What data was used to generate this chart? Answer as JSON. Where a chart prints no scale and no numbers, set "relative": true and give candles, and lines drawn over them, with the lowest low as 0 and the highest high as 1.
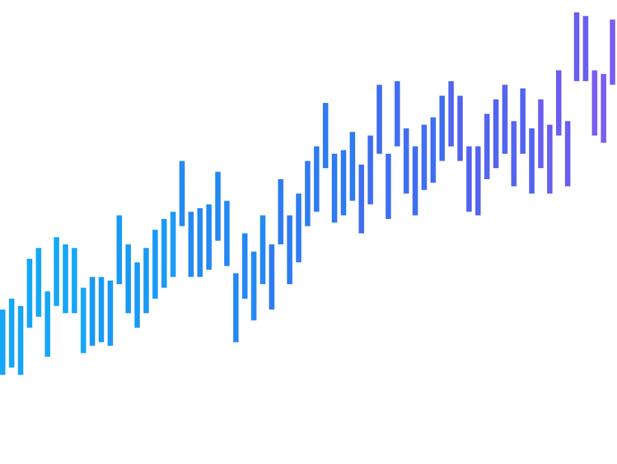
{
  "chart_data": {
    "type": "candlestick",
    "relative": true,
    "categories": [
      null,
      null,
      null,
      null,
      null,
      null,
      null,
      null,
      null,
      null,
      null,
      null,
      null,
      null,
      null,
      null,
      null,
      null,
      null,
      null,
      null,
      null,
      null,
      null,
      null,
      null,
      null,
      null,
      null,
      null,
      null,
      null,
      null,
      null,
      null,
      null,
      null,
      null,
      null,
      null,
      null,
      null,
      null,
      null,
      null,
      null,
      null,
      null,
      null,
      null,
      null,
      null,
      null,
      null,
      null,
      null,
      null,
      null,
      null,
      null,
      null,
      null,
      null,
      null,
      null,
      null,
      null,
      null,
      null
    ],
    "ohlc": [
      [
        0,
        0.18,
        0,
        0.18
      ],
      [
        0.02,
        0.21,
        0.02,
        0.21
      ],
      [
        0,
        0.19,
        0,
        0.19
      ],
      [
        0.13,
        0.32,
        0.13,
        0.32
      ],
      [
        0.16,
        0.35,
        0.16,
        0.35
      ],
      [
        0.05,
        0.23,
        0.05,
        0.23
      ],
      [
        0.19,
        0.38,
        0.19,
        0.38
      ],
      [
        0.17,
        0.36,
        0.17,
        0.36
      ],
      [
        0.17,
        0.35,
        0.17,
        0.35
      ],
      [
        0.06,
        0.24,
        0.06,
        0.24
      ],
      [
        0.08,
        0.27,
        0.08,
        0.27
      ],
      [
        0.09,
        0.27,
        0.09,
        0.27
      ],
      [
        0.08,
        0.26,
        0.08,
        0.26
      ],
      [
        0.25,
        0.44,
        0.25,
        0.44
      ],
      [
        0.17,
        0.36,
        0.17,
        0.36
      ],
      [
        0.13,
        0.31,
        0.13,
        0.31
      ],
      [
        0.17,
        0.35,
        0.17,
        0.35
      ],
      [
        0.21,
        0.4,
        0.21,
        0.4
      ],
      [
        0.24,
        0.43,
        0.24,
        0.43
      ],
      [
        0.27,
        0.45,
        0.27,
        0.45
      ],
      [
        0.41,
        0.59,
        0.41,
        0.59
      ],
      [
        0.27,
        0.45,
        0.27,
        0.45
      ],
      [
        0.27,
        0.46,
        0.27,
        0.46
      ],
      [
        0.29,
        0.47,
        0.29,
        0.47
      ],
      [
        0.37,
        0.56,
        0.37,
        0.56
      ],
      [
        0.3,
        0.48,
        0.3,
        0.48
      ],
      [
        0.09,
        0.28,
        0.09,
        0.28
      ],
      [
        0.21,
        0.39,
        0.21,
        0.39
      ],
      [
        0.15,
        0.34,
        0.15,
        0.34
      ],
      [
        0.25,
        0.44,
        0.25,
        0.44
      ],
      [
        0.18,
        0.36,
        0.18,
        0.36
      ],
      [
        0.36,
        0.54,
        0.36,
        0.54
      ],
      [
        0.25,
        0.44,
        0.25,
        0.44
      ],
      [
        0.31,
        0.5,
        0.31,
        0.5
      ],
      [
        0.41,
        0.59,
        0.41,
        0.59
      ],
      [
        0.45,
        0.63,
        0.45,
        0.63
      ],
      [
        0.57,
        0.75,
        0.57,
        0.75
      ],
      [
        0.42,
        0.61,
        0.42,
        0.61
      ],
      [
        0.44,
        0.62,
        0.44,
        0.62
      ],
      [
        0.48,
        0.67,
        0.48,
        0.67
      ],
      [
        0.39,
        0.58,
        0.39,
        0.58
      ],
      [
        0.47,
        0.66,
        0.47,
        0.66
      ],
      [
        0.61,
        0.8,
        0.61,
        0.8
      ],
      [
        0.43,
        0.61,
        0.43,
        0.61
      ],
      [
        0.63,
        0.81,
        0.63,
        0.81
      ],
      [
        0.5,
        0.68,
        0.5,
        0.68
      ],
      [
        0.44,
        0.63,
        0.44,
        0.63
      ],
      [
        0.51,
        0.69,
        0.51,
        0.69
      ],
      [
        0.53,
        0.71,
        0.53,
        0.71
      ],
      [
        0.59,
        0.77,
        0.59,
        0.77
      ],
      [
        0.63,
        0.81,
        0.63,
        0.81
      ],
      [
        0.59,
        0.77,
        0.59,
        0.77
      ],
      [
        0.45,
        0.63,
        0.45,
        0.63
      ],
      [
        0.44,
        0.63,
        0.44,
        0.63
      ],
      [
        0.54,
        0.72,
        0.54,
        0.72
      ],
      [
        0.57,
        0.76,
        0.57,
        0.76
      ],
      [
        0.61,
        0.8,
        0.61,
        0.8
      ],
      [
        0.52,
        0.7,
        0.52,
        0.7
      ],
      [
        0.61,
        0.79,
        0.61,
        0.79
      ],
      [
        0.5,
        0.68,
        0.5,
        0.68
      ],
      [
        0.57,
        0.76,
        0.57,
        0.76
      ],
      [
        0.5,
        0.69,
        0.5,
        0.69
      ],
      [
        0.66,
        0.84,
        0.66,
        0.84
      ],
      [
        0.52,
        0.7,
        0.52,
        0.7
      ],
      [
        0.81,
        1.0,
        0.81,
        1.0
      ],
      [
        0.81,
        0.99,
        0.81,
        0.99
      ],
      [
        0.66,
        0.84,
        0.66,
        0.84
      ],
      [
        0.64,
        0.83,
        0.64,
        0.83
      ],
      [
        0.8,
        0.98,
        0.8,
        0.98
      ]
    ],
    "colors": [
      "#16a6f6",
      "#16a6f6",
      "#16a6f6",
      "#16a6f6",
      "#16a6f6",
      "#16a6f6",
      "#16a6f6",
      "#16a6f6",
      "#16a6f6",
      "#16a6f6",
      "#1a9af5",
      "#1a9af5",
      "#1a9af5",
      "#1a9af5",
      "#1a9af5",
      "#1a9af5",
      "#1a9af5",
      "#1a9af5",
      "#1a9af5",
      "#1a9af5",
      "#2489f2",
      "#2489f2",
      "#2489f2",
      "#2489f2",
      "#2489f2",
      "#2489f2",
      "#2489f2",
      "#2489f2",
      "#2489f2",
      "#2489f2",
      "#2e7cf0",
      "#2e7cf0",
      "#2e7cf0",
      "#2e7cf0",
      "#2e7cf0",
      "#2e7cf0",
      "#2e7cf0",
      "#2e7cf0",
      "#2e7cf0",
      "#2e7cf0",
      "#3f6ef0",
      "#3f6ef0",
      "#3f6ef0",
      "#3f6ef0",
      "#3f6ef0",
      "#3f6ef0",
      "#3f6ef0",
      "#3f6ef0",
      "#3f6ef0",
      "#3f6ef0",
      "#5364ef",
      "#5364ef",
      "#5364ef",
      "#5364ef",
      "#5364ef",
      "#5364ef",
      "#5364ef",
      "#5364ef",
      "#5364ef",
      "#5364ef",
      "#6b5ef0",
      "#6b5ef0",
      "#6b5ef0",
      "#6b5ef0",
      "#6b5ef0",
      "#6b5ef0",
      "#7b5cf0",
      "#7b5cf0",
      "#7b5cf0"
    ]
  }
}
